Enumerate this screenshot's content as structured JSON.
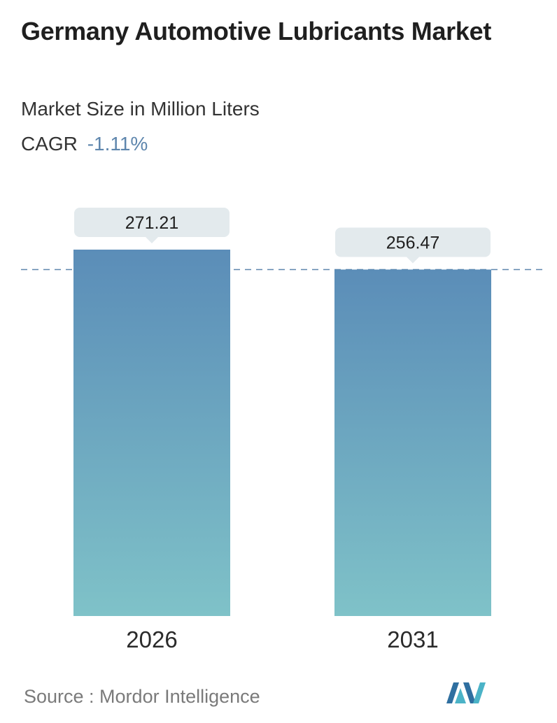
{
  "header": {
    "title": "Germany Automotive Lubricants Market",
    "subtitle": "Market Size in Million Liters",
    "cagr_label": "CAGR",
    "cagr_value": "-1.11%"
  },
  "chart_data": {
    "type": "bar",
    "categories": [
      "2026",
      "2031"
    ],
    "values": [
      271.21,
      256.47
    ],
    "value_labels": [
      "271.21",
      "256.47"
    ],
    "title": "Germany Automotive Lubricants Market",
    "subtitle": "Market Size in Million Liters",
    "xlabel": "",
    "ylabel": "",
    "grid": false,
    "reference_line": "dashed line at the 2031 value",
    "colors": {
      "bar_top": "#5b8db8",
      "bar_bottom": "#7fc2c8",
      "label_box": "#e3eaed",
      "dash": "#5e86ad"
    }
  },
  "footer": {
    "source": "Source :  Mordor Intelligence",
    "logo": "mordor-intelligence-logo"
  }
}
